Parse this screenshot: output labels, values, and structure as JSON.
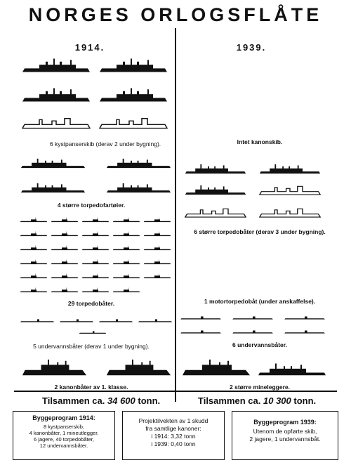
{
  "title": "NORGES ORLOGSFLÅTE",
  "years": {
    "left": "1914.",
    "right": "1939."
  },
  "left_captions": {
    "kystpanserskib": "6 kystpanserskib (derav 2 under bygning).",
    "torpedofartoier": "4 større torpedofartøier.",
    "torpedobater": "29 torpedobåter.",
    "undervannsbater": "5 undervannsbåter (derav 1 under bygning).",
    "kanonbater": "2 kanonbåter av 1. klasse."
  },
  "right_captions": {
    "kanonskib": "Intet kanonskib.",
    "torpedobater": "6 større torpedobåter (derav 3 under bygning).",
    "motortorpedobat": "1 motortorpedobåt (under anskaffelse).",
    "undervannsbater": "6 undervannsbåter.",
    "mineleggere": "2 større mineleggere."
  },
  "totals": {
    "left_prefix": "Tilsammen ca.",
    "left_value": "34 600",
    "left_unit": "tonn.",
    "right_prefix": "Tilsammen ca.",
    "right_value": "10 300",
    "right_unit": "tonn."
  },
  "boxes": {
    "left": {
      "title": "Byggeprogram 1914:",
      "lines": [
        "8 kystpanserskib,",
        "4 kanonbåter, 1 mineutlegger,",
        "6 jagere, 40 torpedobåter,",
        "12 undervannsbåter."
      ]
    },
    "middle": {
      "lines": [
        "Projektilvekten av 1 skudd",
        "fra samtlige kanoner:",
        "i 1914: 3,32 tonn",
        "i 1939: 0,40 tonn"
      ]
    },
    "right": {
      "title": "Byggeprogram 1939:",
      "lines": [
        "Utenom de opførte skib,",
        "2 jagere, 1 undervannsbåt."
      ]
    }
  }
}
